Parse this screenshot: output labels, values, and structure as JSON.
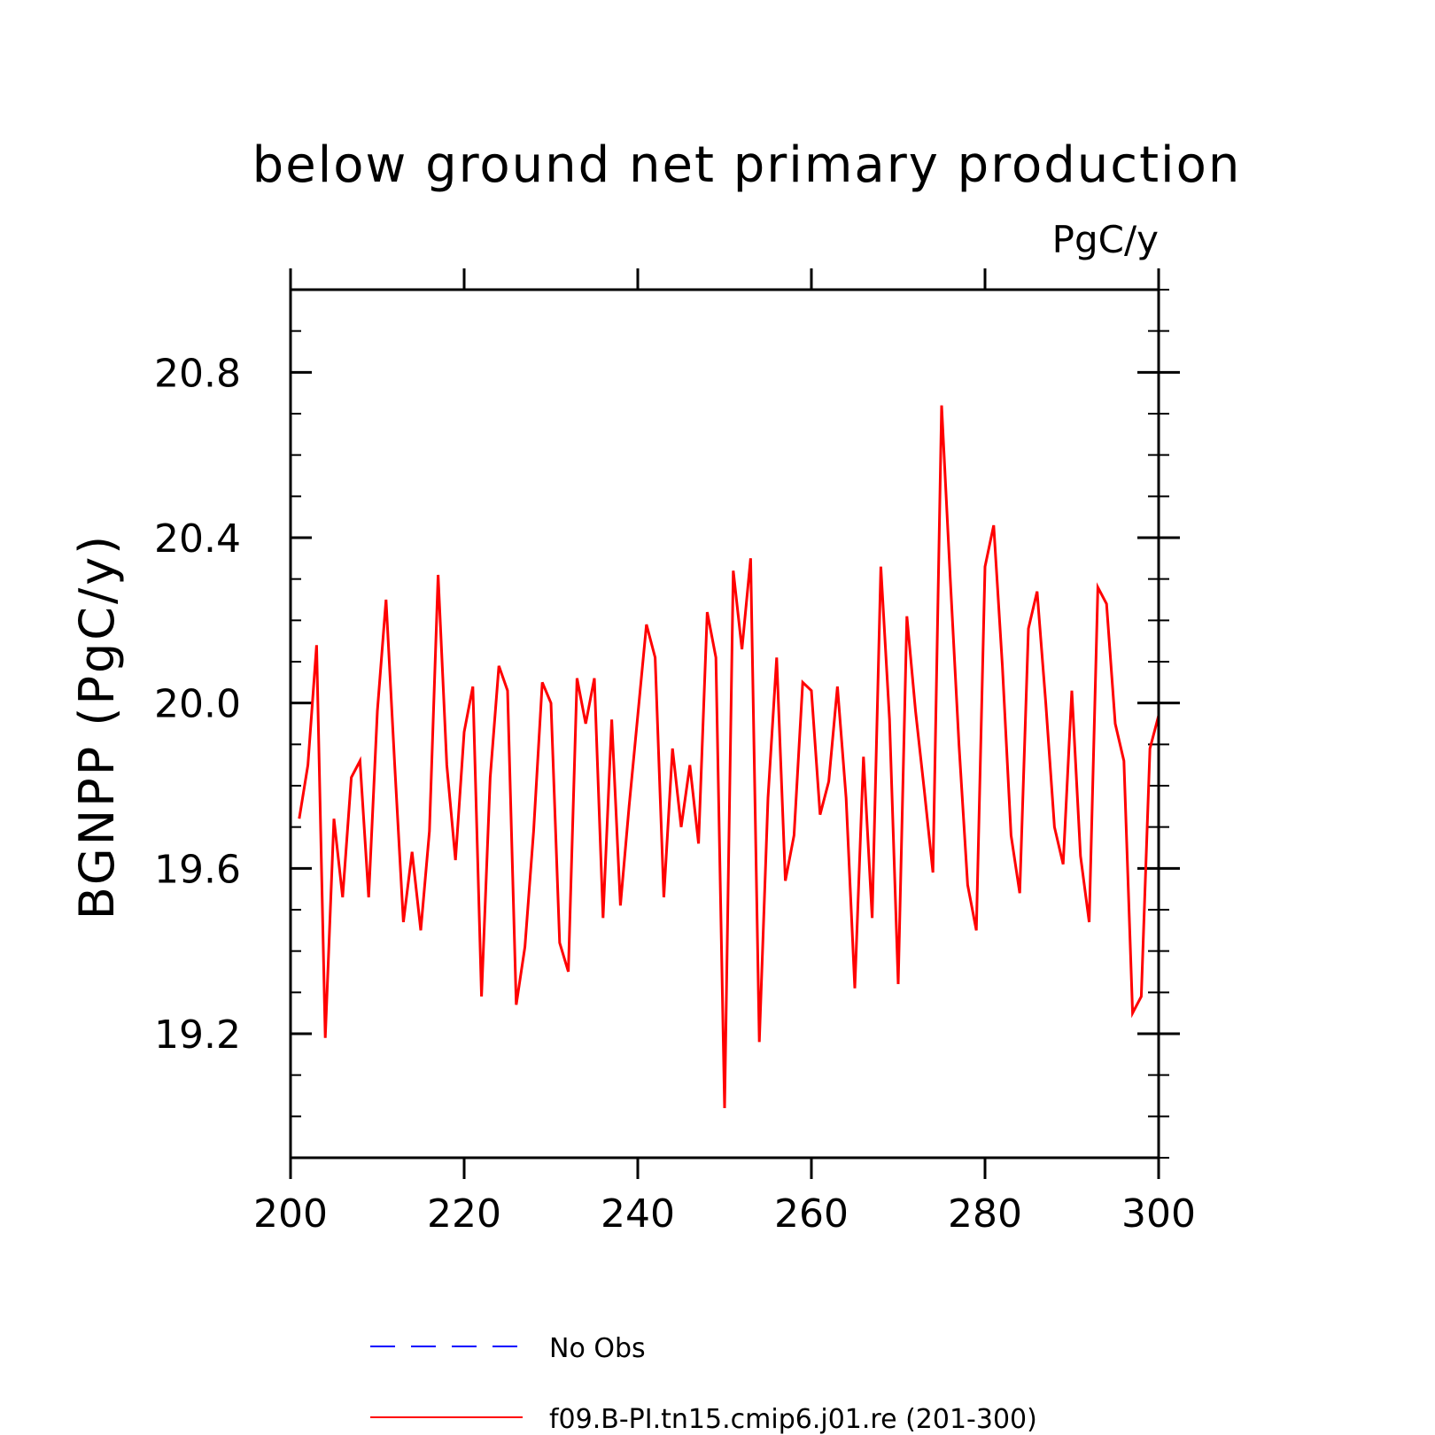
{
  "chart_data": {
    "type": "line",
    "title": "below ground net primary production",
    "units_label": "PgC/y",
    "ylabel": "BGNPP  (PgC/y)",
    "xlabel": "",
    "xlim": [
      200,
      300
    ],
    "ylim": [
      18.9,
      21.0
    ],
    "x_ticks": [
      200,
      220,
      240,
      260,
      280,
      300
    ],
    "y_ticks": [
      19.2,
      19.6,
      20.0,
      20.4,
      20.8
    ],
    "y_tick_labels": [
      "19.2",
      "19.6",
      "20.0",
      "20.4",
      "20.8"
    ],
    "grid": false,
    "legend_position": "bottom",
    "series": [
      {
        "name": "No Obs",
        "color": "#0000ff",
        "dash": true,
        "x": [],
        "values": []
      },
      {
        "name": "f09.B-PI.tn15.cmip6.j01.re (201-300)",
        "color": "#ff0000",
        "dash": false,
        "x": [
          201,
          202,
          203,
          204,
          205,
          206,
          207,
          208,
          209,
          210,
          211,
          212,
          213,
          214,
          215,
          216,
          217,
          218,
          219,
          220,
          221,
          222,
          223,
          224,
          225,
          226,
          227,
          228,
          229,
          230,
          231,
          232,
          233,
          234,
          235,
          236,
          237,
          238,
          239,
          240,
          241,
          242,
          243,
          244,
          245,
          246,
          247,
          248,
          249,
          250,
          251,
          252,
          253,
          254,
          255,
          256,
          257,
          258,
          259,
          260,
          261,
          262,
          263,
          264,
          265,
          266,
          267,
          268,
          269,
          270,
          271,
          272,
          273,
          274,
          275,
          276,
          277,
          278,
          279,
          280,
          281,
          282,
          283,
          284,
          285,
          286,
          287,
          288,
          289,
          290,
          291,
          292,
          293,
          294,
          295,
          296,
          297,
          298,
          299,
          300
        ],
        "values": [
          19.72,
          19.85,
          20.14,
          19.19,
          19.72,
          19.53,
          19.82,
          19.86,
          19.53,
          19.98,
          20.25,
          19.85,
          19.47,
          19.64,
          19.45,
          19.69,
          20.31,
          19.85,
          19.62,
          19.93,
          20.04,
          19.29,
          19.82,
          20.09,
          20.03,
          19.27,
          19.41,
          19.69,
          20.05,
          20.0,
          19.42,
          19.35,
          20.06,
          19.95,
          20.06,
          19.48,
          19.96,
          19.51,
          19.75,
          19.97,
          20.19,
          20.11,
          19.53,
          19.89,
          19.7,
          19.85,
          19.66,
          20.22,
          20.11,
          19.02,
          20.32,
          20.13,
          20.35,
          19.18,
          19.77,
          20.11,
          19.57,
          19.68,
          20.05,
          20.03,
          19.73,
          19.81,
          20.04,
          19.77,
          19.31,
          19.87,
          19.48,
          20.33,
          19.96,
          19.32,
          20.21,
          19.98,
          19.79,
          19.59,
          20.72,
          20.3,
          19.9,
          19.56,
          19.45,
          20.33,
          20.43,
          20.09,
          19.68,
          19.54,
          20.18,
          20.27,
          20.0,
          19.7,
          19.61,
          20.03,
          19.63,
          19.47,
          20.28,
          20.24,
          19.95,
          19.86,
          19.25,
          19.29,
          19.89,
          19.97
        ]
      }
    ]
  }
}
